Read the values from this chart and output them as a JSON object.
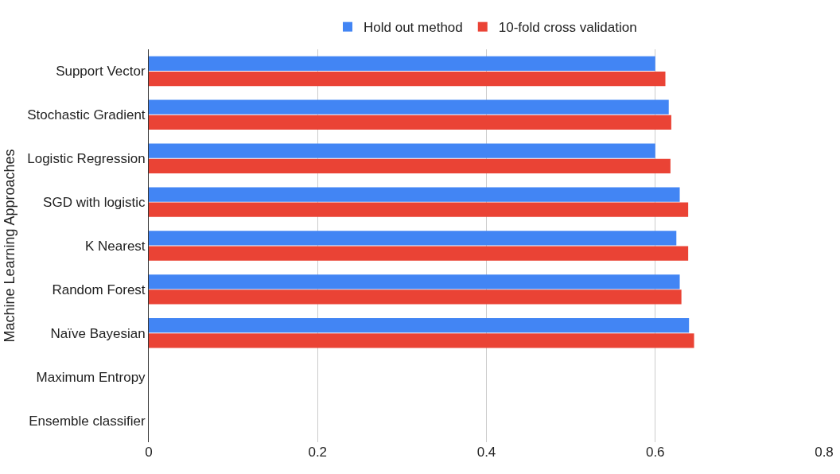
{
  "chart_data": {
    "type": "bar",
    "orientation": "horizontal",
    "ylabel": "Machine Learning Approaches",
    "categories": [
      "Support Vector",
      "Stochastic Gradient",
      "Logistic Regression",
      "SGD with logistic",
      "K Nearest",
      "Random Forest",
      "Naïve Bayesian",
      "Maximum Entropy",
      "Ensemble classifier"
    ],
    "series": [
      {
        "name": "Hold out method",
        "color": "#4285f4",
        "values": [
          0.6,
          0.616,
          0.6,
          0.629,
          0.625,
          0.629,
          0.64,
          null,
          null
        ]
      },
      {
        "name": "10-fold cross validation",
        "color": "#ea4335",
        "values": [
          0.612,
          0.619,
          0.618,
          0.639,
          0.639,
          0.631,
          0.646,
          null,
          null
        ]
      }
    ],
    "xlim": [
      0,
      0.8
    ],
    "xticks": [
      0,
      0.2,
      0.4,
      0.6,
      0.8
    ],
    "grid": "x",
    "legend": "top"
  }
}
